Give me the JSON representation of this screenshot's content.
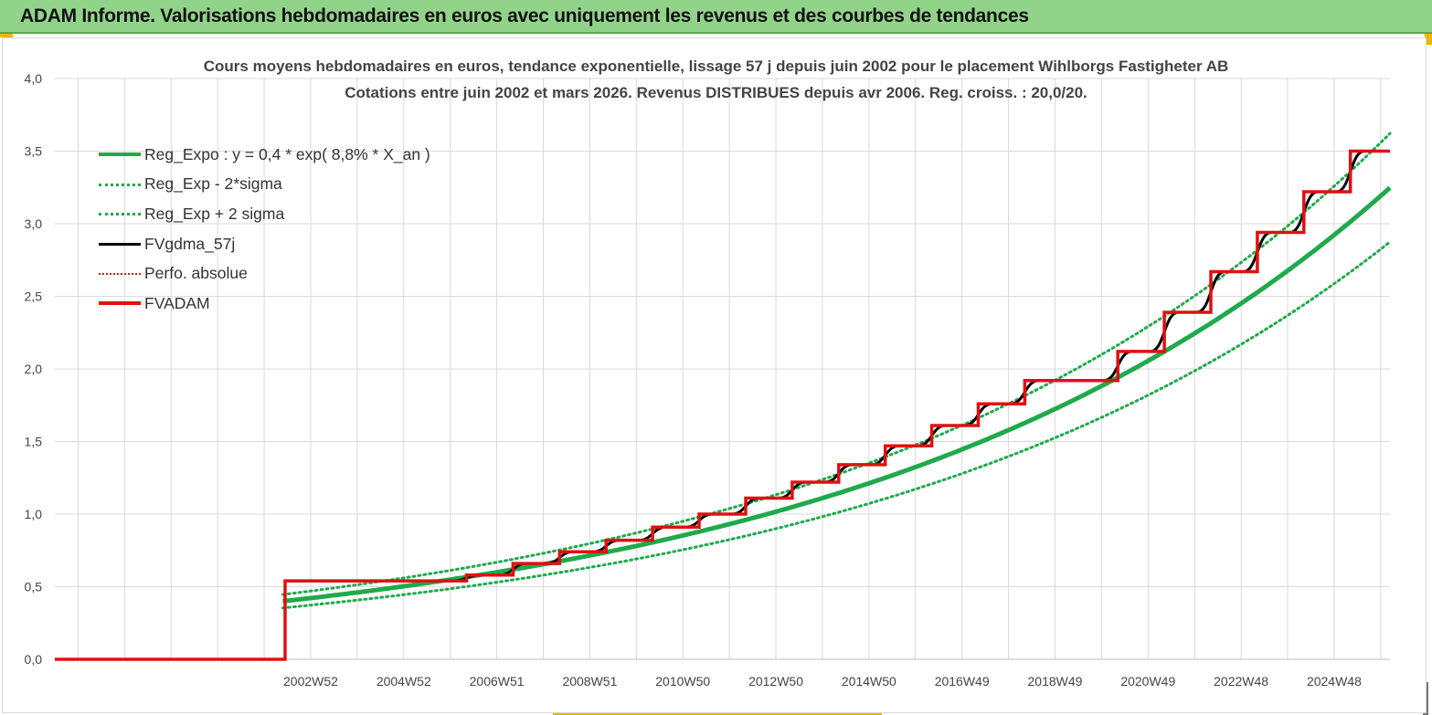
{
  "banner": {
    "title": "ADAM Informe. Valorisations hebdomadaires en euros avec uniquement les revenus et des courbes de tendances"
  },
  "colors": {
    "banner_bg": "#92d38a",
    "reg_expo": "#1faa4b",
    "bands": "#1faa4b",
    "fvgdma": "#000000",
    "perfo": "#d81b1b",
    "fvadam": "#e01010",
    "grid": "#d9d9d9"
  },
  "chart_data": {
    "type": "line",
    "title": "Cours moyens hebdomadaires en euros, tendance exponentielle, lissage 57 j depuis juin 2002 pour le placement Wihlborgs Fastigheter AB",
    "subtitle": "Cotations entre juin 2002 et mars 2026. Revenus DISTRIBUES depuis avr 2006. Reg. croiss. : 20,0/20.",
    "xlabel": "",
    "ylabel": "",
    "ylim": [
      0,
      4
    ],
    "y_ticks": [
      "0,0",
      "0,5",
      "1,0",
      "1,5",
      "2,0",
      "2,5",
      "3,0",
      "3,5",
      "4,0"
    ],
    "x_range": [
      1997.5,
      2026.2
    ],
    "x_ticks": [
      {
        "label": "2002W52",
        "x": 2003.0
      },
      {
        "label": "2004W52",
        "x": 2005.0
      },
      {
        "label": "2006W51",
        "x": 2007.0
      },
      {
        "label": "2008W51",
        "x": 2009.0
      },
      {
        "label": "2010W50",
        "x": 2011.0
      },
      {
        "label": "2012W50",
        "x": 2013.0
      },
      {
        "label": "2014W50",
        "x": 2015.0
      },
      {
        "label": "2016W49",
        "x": 2017.0
      },
      {
        "label": "2018W49",
        "x": 2019.0
      },
      {
        "label": "2020W49",
        "x": 2021.0
      },
      {
        "label": "2022W48",
        "x": 2023.0
      },
      {
        "label": "2024W48",
        "x": 2025.0
      }
    ],
    "grid": true,
    "legend_position": "top-left",
    "series": [
      {
        "name": "Reg_Expo : y = 0,4 * exp( 8,8% *  X_an )",
        "kind": "regression",
        "a": 0.4,
        "rate": 0.088,
        "x0": 2002.4,
        "x_start": 2002.4,
        "x_end": 2026.2,
        "style": "solid-thick",
        "color": "#1faa4b"
      },
      {
        "name": "Reg_Exp - 2*sigma",
        "kind": "band",
        "factor": 0.885,
        "style": "dotted",
        "color": "#1faa4b"
      },
      {
        "name": "Reg_Exp + 2 sigma",
        "kind": "band",
        "factor": 1.115,
        "style": "dotted",
        "color": "#1faa4b"
      },
      {
        "name": "FVgdma_57j",
        "kind": "smooth-steps",
        "style": "solid",
        "color": "#000000"
      },
      {
        "name": "Perfo. absolue",
        "kind": "line",
        "style": "dotted",
        "color": "#d81b1b"
      },
      {
        "name": "FVADAM",
        "kind": "steps",
        "style": "solid-thick",
        "color": "#e01010",
        "x_start": 1997.5,
        "x_jump": 2002.45,
        "base_value": 0.0,
        "steps": [
          {
            "x": 2002.45,
            "y": 0.54
          },
          {
            "x": 2006.35,
            "y": 0.58
          },
          {
            "x": 2007.35,
            "y": 0.66
          },
          {
            "x": 2008.35,
            "y": 0.74
          },
          {
            "x": 2009.35,
            "y": 0.82
          },
          {
            "x": 2010.35,
            "y": 0.91
          },
          {
            "x": 2011.35,
            "y": 1.0
          },
          {
            "x": 2012.35,
            "y": 1.11
          },
          {
            "x": 2013.35,
            "y": 1.22
          },
          {
            "x": 2014.35,
            "y": 1.34
          },
          {
            "x": 2015.35,
            "y": 1.47
          },
          {
            "x": 2016.35,
            "y": 1.61
          },
          {
            "x": 2017.35,
            "y": 1.76
          },
          {
            "x": 2018.35,
            "y": 1.92
          },
          {
            "x": 2020.35,
            "y": 2.12
          },
          {
            "x": 2021.35,
            "y": 2.39
          },
          {
            "x": 2022.35,
            "y": 2.67
          },
          {
            "x": 2023.35,
            "y": 2.94
          },
          {
            "x": 2024.35,
            "y": 3.22
          },
          {
            "x": 2025.35,
            "y": 3.5
          }
        ],
        "x_end": 2026.2
      }
    ]
  }
}
